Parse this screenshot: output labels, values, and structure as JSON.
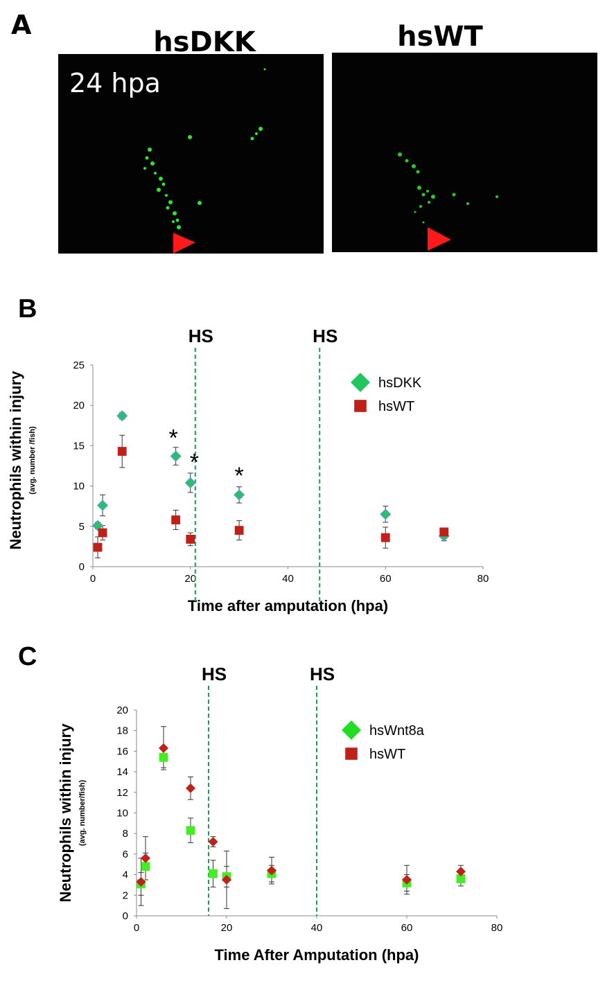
{
  "panel_a": {
    "letter": "A",
    "images": [
      {
        "title": "hsDKK",
        "label": "24 hpa"
      },
      {
        "title": "hsWT",
        "label": ""
      }
    ]
  },
  "chart_data": [
    {
      "panel": "B",
      "type": "scatter",
      "xlabel": "Time after amputation (hpa)",
      "ylabel": "Neutrophils within injury",
      "ylabel_sub": "(avg. number /fish)",
      "xlim": [
        0,
        80
      ],
      "ylim": [
        0,
        25
      ],
      "xticks": [
        0,
        20,
        40,
        60,
        80
      ],
      "yticks": [
        0,
        5,
        10,
        15,
        20,
        25
      ],
      "grid": false,
      "legend_position": "top-right",
      "vlines": [
        {
          "x": 21,
          "label": "HS"
        },
        {
          "x": 46.5,
          "label": "HS"
        }
      ],
      "series": [
        {
          "name": "hsDKK",
          "marker": "diamond",
          "color": "#22c55e",
          "edge": "#5b9bd5",
          "x": [
            1,
            2,
            6,
            17,
            20,
            30,
            60,
            72
          ],
          "y": [
            5.1,
            7.6,
            18.7,
            13.7,
            10.4,
            8.9,
            6.5,
            3.8
          ],
          "err": [
            0.4,
            1.3,
            0.4,
            1.1,
            1.2,
            1.0,
            1.0,
            0.6
          ]
        },
        {
          "name": "hsWT",
          "marker": "square",
          "color": "#c0201a",
          "x": [
            1,
            2,
            6,
            17,
            20,
            30,
            60,
            72
          ],
          "y": [
            2.4,
            4.2,
            14.3,
            5.8,
            3.4,
            4.5,
            3.6,
            4.3
          ],
          "err": [
            1.3,
            0.9,
            2.0,
            1.2,
            0.8,
            1.2,
            1.3,
            0.5
          ]
        }
      ],
      "annotations": [
        {
          "text": "*",
          "x": 16.5,
          "y": 16.2
        },
        {
          "text": "*",
          "x": 20.8,
          "y": 13.2
        },
        {
          "text": "*",
          "x": 30,
          "y": 11.5
        }
      ]
    },
    {
      "panel": "C",
      "type": "scatter",
      "xlabel": "Time After Amputation (hpa)",
      "ylabel": "Neutrophils within injury",
      "ylabel_sub": "(avg. number/fish)",
      "xlim": [
        0,
        80
      ],
      "ylim": [
        0,
        20
      ],
      "xticks": [
        0,
        20,
        40,
        60,
        80
      ],
      "yticks": [
        0,
        2,
        4,
        6,
        8,
        10,
        12,
        14,
        16,
        18,
        20
      ],
      "grid": false,
      "legend_position": "top-right",
      "vlines": [
        {
          "x": 16,
          "label": "HS"
        },
        {
          "x": 40,
          "label": "HS"
        }
      ],
      "series": [
        {
          "name": "hsWnt8a",
          "marker": "square",
          "color": "#44ee22",
          "x": [
            1,
            2,
            6,
            12,
            17,
            20,
            30,
            60,
            72
          ],
          "y": [
            3.1,
            4.8,
            15.4,
            8.3,
            4.1,
            3.8,
            4.1,
            3.2,
            3.6
          ],
          "err": [
            1.1,
            1.3,
            1.0,
            1.2,
            1.3,
            1.0,
            0.8,
            0.8,
            0.7
          ]
        },
        {
          "name": "hsWT",
          "marker": "diamond",
          "color": "#c0201a",
          "x": [
            1,
            2,
            6,
            12,
            17,
            20,
            30,
            60,
            72
          ],
          "y": [
            3.3,
            5.6,
            16.3,
            12.4,
            7.2,
            3.5,
            4.4,
            3.5,
            4.3
          ],
          "err": [
            2.3,
            2.1,
            2.1,
            1.1,
            0.5,
            2.8,
            1.3,
            1.4,
            0.6
          ]
        }
      ],
      "legend_order": [
        {
          "name": "hsWnt8a",
          "marker": "diamond",
          "color": "#22dd22"
        },
        {
          "name": "hsWT",
          "marker": "square",
          "color": "#c0201a"
        }
      ]
    }
  ]
}
